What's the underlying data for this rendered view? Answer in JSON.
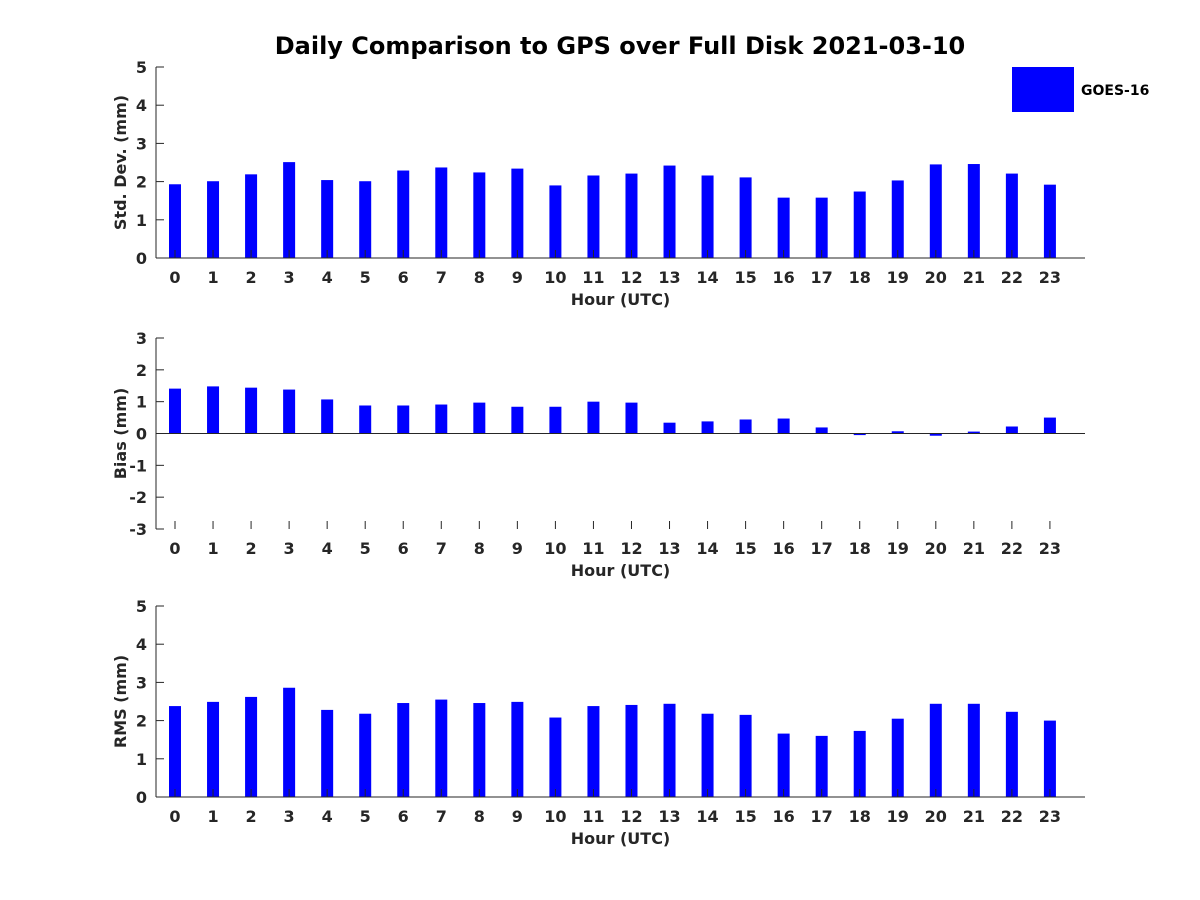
{
  "title": "Daily Comparison to GPS over Full Disk 2021-03-10",
  "legend": {
    "label": "GOES-16",
    "color": "#0000ff"
  },
  "chart_data": [
    {
      "type": "bar",
      "name": "std-dev",
      "ylabel": "Std. Dev. (mm)",
      "xlabel": "Hour (UTC)",
      "ylim": [
        0,
        5
      ],
      "yticks": [
        0,
        1,
        2,
        3,
        4,
        5
      ],
      "categories": [
        "0",
        "1",
        "2",
        "3",
        "4",
        "5",
        "6",
        "7",
        "8",
        "9",
        "10",
        "11",
        "12",
        "13",
        "14",
        "15",
        "16",
        "17",
        "18",
        "19",
        "20",
        "21",
        "22",
        "23"
      ],
      "series": [
        {
          "name": "GOES-16",
          "values": [
            1.93,
            2.01,
            2.19,
            2.51,
            2.04,
            2.01,
            2.29,
            2.37,
            2.24,
            2.34,
            1.9,
            2.16,
            2.21,
            2.42,
            2.16,
            2.11,
            1.58,
            1.58,
            1.74,
            2.03,
            2.45,
            2.46,
            2.21,
            1.92
          ]
        }
      ]
    },
    {
      "type": "bar",
      "name": "bias",
      "ylabel": "Bias (mm)",
      "xlabel": "Hour (UTC)",
      "ylim": [
        -3,
        3
      ],
      "yticks": [
        -3,
        -2,
        -1,
        0,
        1,
        2,
        3
      ],
      "categories": [
        "0",
        "1",
        "2",
        "3",
        "4",
        "5",
        "6",
        "7",
        "8",
        "9",
        "10",
        "11",
        "12",
        "13",
        "14",
        "15",
        "16",
        "17",
        "18",
        "19",
        "20",
        "21",
        "22",
        "23"
      ],
      "series": [
        {
          "name": "GOES-16",
          "values": [
            1.41,
            1.48,
            1.44,
            1.38,
            1.07,
            0.88,
            0.88,
            0.91,
            0.97,
            0.84,
            0.84,
            1.0,
            0.97,
            0.34,
            0.38,
            0.44,
            0.47,
            0.19,
            -0.05,
            0.07,
            -0.07,
            0.06,
            0.22,
            0.5
          ]
        }
      ]
    },
    {
      "type": "bar",
      "name": "rms",
      "ylabel": "RMS (mm)",
      "xlabel": "Hour (UTC)",
      "ylim": [
        0,
        5
      ],
      "yticks": [
        0,
        1,
        2,
        3,
        4,
        5
      ],
      "categories": [
        "0",
        "1",
        "2",
        "3",
        "4",
        "5",
        "6",
        "7",
        "8",
        "9",
        "10",
        "11",
        "12",
        "13",
        "14",
        "15",
        "16",
        "17",
        "18",
        "19",
        "20",
        "21",
        "22",
        "23"
      ],
      "series": [
        {
          "name": "GOES-16",
          "values": [
            2.38,
            2.49,
            2.62,
            2.86,
            2.28,
            2.18,
            2.46,
            2.55,
            2.46,
            2.49,
            2.08,
            2.38,
            2.41,
            2.44,
            2.18,
            2.15,
            1.66,
            1.6,
            1.73,
            2.05,
            2.44,
            2.44,
            2.23,
            2.0
          ]
        }
      ]
    }
  ]
}
